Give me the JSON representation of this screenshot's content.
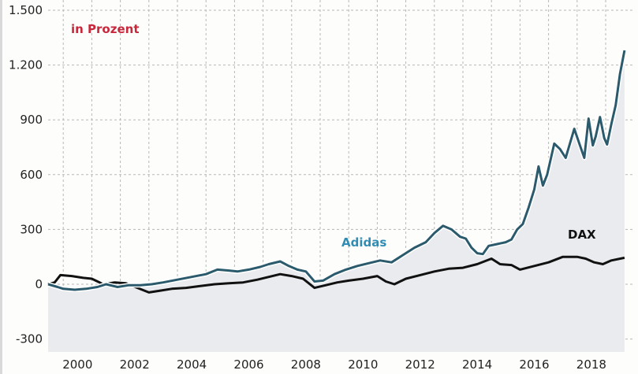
{
  "chart_data": {
    "type": "line",
    "title": "",
    "unit_label": "in Prozent",
    "xlabel": "",
    "ylabel": "",
    "ylim": [
      -300,
      1500
    ],
    "xlim": [
      1999.47,
      2019.66
    ],
    "yticks": [
      -300,
      0,
      300,
      600,
      900,
      1200,
      1500
    ],
    "ytick_labels": [
      "-300",
      "0",
      "300",
      "600",
      "900",
      "1.200",
      "1.500"
    ],
    "xticks": [
      2000,
      2002,
      2004,
      2006,
      2008,
      2010,
      2012,
      2014,
      2016,
      2018
    ],
    "xtick_labels": [
      "2000",
      "2002",
      "2004",
      "2006",
      "2008",
      "2010",
      "2012",
      "2014",
      "2016",
      "2018"
    ],
    "grid": true,
    "colors": {
      "adidas_line": "#2a5a6c",
      "adidas_label": "#2f8db3",
      "dax": "#111111",
      "fill": "#e9ebef",
      "unit_label": "#c8283c"
    },
    "series": [
      {
        "name": "Adidas",
        "x": [
          1999.47,
          1999.8,
          2000.0,
          2000.4,
          2000.8,
          2001.2,
          2001.5,
          2001.9,
          2002.3,
          2002.7,
          2003.1,
          2003.5,
          2004.0,
          2004.5,
          2005.0,
          2005.4,
          2005.8,
          2006.1,
          2006.5,
          2006.9,
          2007.2,
          2007.6,
          2007.9,
          2008.2,
          2008.5,
          2008.8,
          2009.1,
          2009.5,
          2009.9,
          2010.3,
          2010.7,
          2011.1,
          2011.5,
          2011.9,
          2012.3,
          2012.7,
          2013.0,
          2013.3,
          2013.6,
          2013.9,
          2014.1,
          2014.3,
          2014.5,
          2014.7,
          2014.9,
          2015.2,
          2015.5,
          2015.7,
          2015.9,
          2016.1,
          2016.3,
          2016.5,
          2016.65,
          2016.8,
          2016.95,
          2017.2,
          2017.4,
          2017.6,
          2017.9,
          2018.1,
          2018.25,
          2018.4,
          2018.55,
          2018.65,
          2018.8,
          2018.95,
          2019.05,
          2019.2,
          2019.35,
          2019.5,
          2019.66
        ],
        "values": [
          0,
          -15,
          -25,
          -30,
          -25,
          -15,
          0,
          -15,
          -5,
          -5,
          0,
          10,
          25,
          40,
          55,
          80,
          75,
          70,
          80,
          95,
          110,
          125,
          100,
          80,
          70,
          15,
          20,
          55,
          80,
          100,
          115,
          130,
          120,
          160,
          200,
          230,
          280,
          320,
          300,
          260,
          250,
          200,
          170,
          165,
          210,
          220,
          230,
          245,
          300,
          330,
          420,
          520,
          645,
          540,
          600,
          770,
          740,
          692,
          851,
          760,
          692,
          907,
          760,
          808,
          915,
          800,
          765,
          877,
          980,
          1150,
          1280
        ]
      },
      {
        "name": "DAX",
        "x": [
          1999.47,
          1999.7,
          1999.9,
          2000.3,
          2000.7,
          2001.0,
          2001.4,
          2001.8,
          2002.2,
          2002.6,
          2003.0,
          2003.4,
          2003.8,
          2004.3,
          2004.8,
          2005.3,
          2005.8,
          2006.3,
          2006.8,
          2007.2,
          2007.6,
          2008.0,
          2008.4,
          2008.8,
          2009.2,
          2009.6,
          2010.0,
          2010.5,
          2011.0,
          2011.3,
          2011.6,
          2012.0,
          2012.5,
          2013.0,
          2013.5,
          2014.0,
          2014.5,
          2015.0,
          2015.3,
          2015.7,
          2016.0,
          2016.5,
          2017.0,
          2017.5,
          2018.0,
          2018.3,
          2018.6,
          2018.9,
          2019.2,
          2019.66
        ],
        "values": [
          0,
          10,
          50,
          45,
          35,
          30,
          0,
          10,
          5,
          -20,
          -45,
          -35,
          -25,
          -20,
          -10,
          0,
          5,
          10,
          25,
          40,
          55,
          45,
          30,
          -20,
          -5,
          10,
          20,
          30,
          45,
          15,
          0,
          30,
          50,
          70,
          85,
          90,
          110,
          140,
          110,
          105,
          80,
          100,
          120,
          150,
          150,
          140,
          120,
          110,
          130,
          145
        ]
      }
    ],
    "annotations": [
      {
        "text": "Adidas",
        "series": "Adidas"
      },
      {
        "text": "DAX",
        "series": "DAX"
      }
    ]
  }
}
